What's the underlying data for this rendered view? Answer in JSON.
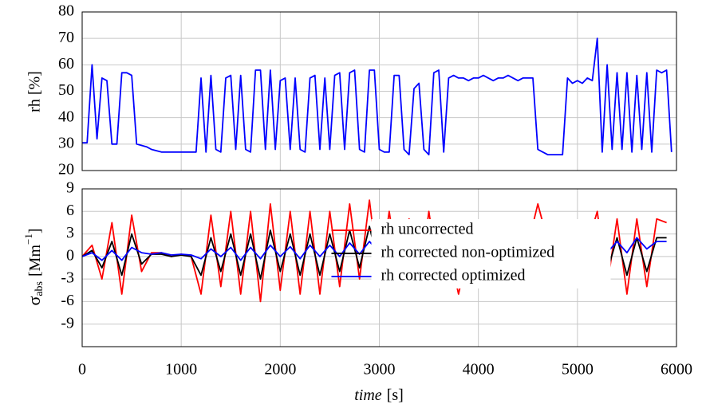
{
  "chart_data": [
    {
      "type": "line",
      "ylabel": "rh [%]",
      "x": [
        0,
        50,
        100,
        150,
        200,
        250,
        300,
        350,
        400,
        450,
        500,
        550,
        600,
        650,
        700,
        750,
        800,
        850,
        900,
        950,
        1000,
        1050,
        1100,
        1150,
        1200,
        1250,
        1300,
        1350,
        1400,
        1450,
        1500,
        1550,
        1600,
        1650,
        1700,
        1750,
        1800,
        1850,
        1900,
        1950,
        2000,
        2050,
        2100,
        2150,
        2200,
        2250,
        2300,
        2350,
        2400,
        2450,
        2500,
        2550,
        2600,
        2650,
        2700,
        2750,
        2800,
        2850,
        2900,
        2950,
        3000,
        3050,
        3100,
        3150,
        3200,
        3250,
        3300,
        3350,
        3400,
        3450,
        3500,
        3550,
        3600,
        3650,
        3700,
        3750,
        3800,
        3850,
        3900,
        3950,
        4000,
        4050,
        4100,
        4150,
        4200,
        4250,
        4300,
        4350,
        4400,
        4450,
        4500,
        4550,
        4600,
        4650,
        4700,
        4750,
        4800,
        4850,
        4900,
        4950,
        5000,
        5050,
        5100,
        5150,
        5200,
        5250,
        5300,
        5350,
        5400,
        5450,
        5500,
        5550,
        5600,
        5650,
        5700,
        5750,
        5800,
        5850,
        5900,
        5950
      ],
      "series": [
        {
          "color": "#0000ff",
          "values": [
            30.5,
            30.5,
            60,
            32,
            55,
            54,
            30,
            30,
            57,
            57,
            56,
            30,
            29.5,
            29,
            28,
            27.5,
            27,
            27,
            27,
            27,
            27,
            27,
            27,
            27,
            55,
            27,
            56,
            28,
            27,
            55,
            56,
            28,
            56,
            28,
            27,
            58,
            58,
            28,
            58,
            28,
            54,
            55,
            28,
            55,
            28,
            27,
            55,
            56,
            28,
            55,
            28,
            56,
            57,
            28,
            57,
            58,
            28,
            27,
            58,
            58,
            28,
            27,
            27,
            56,
            56,
            28,
            26,
            51,
            53,
            28,
            26,
            57,
            58,
            27,
            55,
            56,
            55,
            55,
            54,
            55,
            55,
            56,
            55,
            54,
            55,
            55,
            56,
            55,
            54,
            55,
            55,
            55,
            28,
            27,
            26,
            26,
            26,
            26,
            55,
            53,
            54,
            53,
            55,
            54,
            70,
            27,
            60,
            28,
            57,
            28,
            57,
            27,
            56,
            28,
            57,
            27,
            58,
            57,
            58,
            27
          ]
        }
      ],
      "xlim": [
        0,
        6000
      ],
      "xticks": [
        0,
        1000,
        2000,
        3000,
        4000,
        5000,
        6000
      ],
      "ylim": [
        20,
        80
      ],
      "yticks": [
        20,
        30,
        40,
        50,
        60,
        70,
        80
      ],
      "grid": true
    },
    {
      "type": "line",
      "ylabel": {
        "symbol": "σ",
        "subscript": "abs",
        "unit": "[Mm",
        "superscript": "−1",
        "close": "]"
      },
      "xlabel": {
        "italic": "time",
        "unit": "[s]"
      },
      "x": [
        0,
        100,
        200,
        300,
        400,
        500,
        600,
        700,
        800,
        900,
        1000,
        1100,
        1200,
        1300,
        1400,
        1500,
        1600,
        1700,
        1800,
        1900,
        2000,
        2100,
        2200,
        2300,
        2400,
        2500,
        2600,
        2700,
        2800,
        2900,
        3000,
        3100,
        3200,
        3300,
        3400,
        3500,
        3600,
        3700,
        3800,
        3900,
        4000,
        4100,
        4200,
        4300,
        4400,
        4500,
        4600,
        4700,
        4800,
        4900,
        5000,
        5100,
        5200,
        5300,
        5400,
        5500,
        5600,
        5700,
        5800,
        5900
      ],
      "series": [
        {
          "name": "rh uncorrected",
          "color": "#ff0000",
          "values": [
            0,
            1.5,
            -3,
            4.5,
            -5,
            5.5,
            -2,
            0.5,
            0.5,
            0,
            0.3,
            0,
            -5,
            5.5,
            -4,
            6,
            -5,
            6,
            -6,
            7,
            -4.5,
            6,
            -5,
            6,
            -5,
            6,
            -4,
            7,
            -3,
            7.5,
            -3.5,
            6,
            -3,
            5,
            -4,
            6,
            -3,
            1,
            -5,
            1,
            1,
            1,
            1.2,
            1,
            1.2,
            1.5,
            7,
            2,
            0.5,
            -3,
            1,
            1.5,
            6,
            -4,
            5,
            -5,
            5,
            -4,
            5,
            4.5
          ]
        },
        {
          "name": "rh corrected non-optimized",
          "color": "#000000",
          "values": [
            0,
            0.8,
            -1.5,
            2,
            -2.5,
            3,
            -1,
            0.3,
            0.3,
            0,
            0.2,
            0,
            -2.5,
            2.5,
            -2,
            3,
            -2.5,
            3,
            -3,
            3.5,
            -2,
            3,
            -2.5,
            3,
            -2.5,
            3,
            -2,
            3.5,
            -1.5,
            4,
            -1.5,
            3,
            -1.5,
            2.5,
            -2,
            3,
            -1.5,
            1,
            -2.5,
            1,
            1,
            1,
            1,
            1,
            1,
            1.2,
            4,
            1.5,
            0.3,
            -1.5,
            0.8,
            1,
            3,
            -2,
            2.5,
            -2.5,
            2.5,
            -2,
            2.5,
            2.5
          ]
        },
        {
          "name": "rh corrected optimized",
          "color": "#0000ff",
          "values": [
            0,
            0.5,
            -0.5,
            0.8,
            -0.5,
            1.2,
            0.5,
            0.3,
            0.5,
            0.2,
            0.3,
            0.2,
            -0.3,
            1,
            0,
            1.2,
            -0.5,
            1.2,
            -0.3,
            1.5,
            0,
            1.3,
            -0.3,
            1.5,
            0,
            1.5,
            0,
            1.8,
            0.3,
            2,
            0.5,
            1.5,
            0.3,
            1.2,
            0,
            1.5,
            0.5,
            1,
            0,
            1,
            1,
            1,
            1.2,
            1,
            1.2,
            1.3,
            2,
            1.5,
            0.8,
            0.5,
            1,
            1.2,
            1.5,
            0.5,
            2,
            0.5,
            2.5,
            1,
            2,
            2
          ]
        }
      ],
      "xlim": [
        0,
        6000
      ],
      "xticks": [
        0,
        1000,
        2000,
        3000,
        4000,
        5000,
        6000
      ],
      "ylim": [
        -12,
        9
      ],
      "yticks": [
        -9,
        -6,
        -3,
        0,
        3,
        6,
        9
      ],
      "grid": true,
      "legend": "lower-center"
    }
  ]
}
